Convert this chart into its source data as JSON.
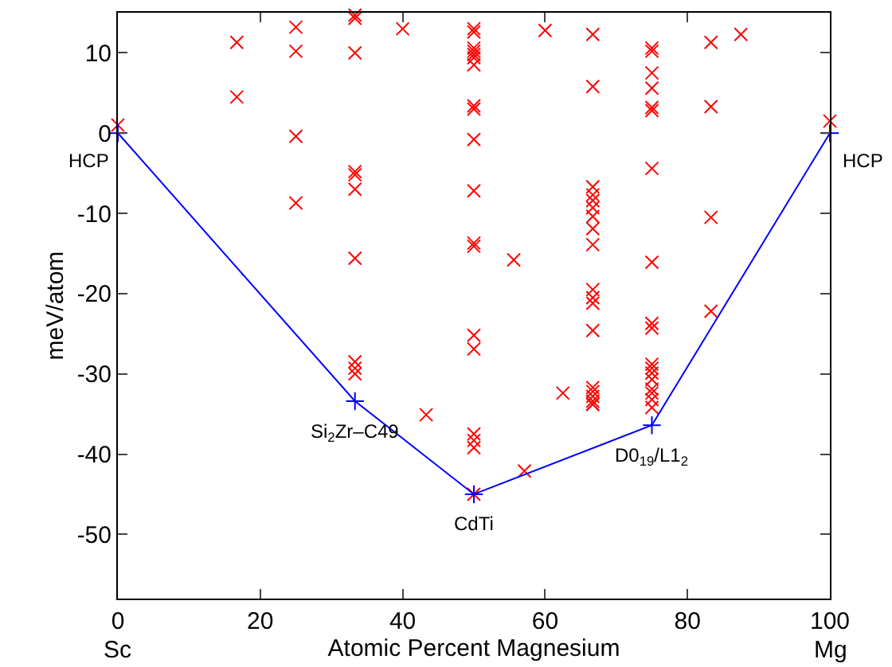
{
  "chart_data": {
    "type": "scatter",
    "xlabel": "Atomic Percent Magnesium",
    "ylabel": "meV/atom",
    "xlim": [
      0,
      100
    ],
    "ylim": [
      -58,
      15
    ],
    "xticks": [
      0,
      20,
      40,
      60,
      80,
      100
    ],
    "yticks": [
      -50,
      -40,
      -30,
      -20,
      -10,
      0,
      10
    ],
    "series": [
      {
        "marker": "cross",
        "color": "#ff0000",
        "x": [
          0,
          16.7,
          16.7,
          25,
          25,
          25,
          25,
          33.3,
          33.3,
          33.3,
          33.3,
          33.3,
          33.3,
          33.3,
          33.3,
          33.3,
          33.3,
          40,
          43.3,
          50,
          50,
          50,
          50,
          50,
          50,
          50,
          50,
          50,
          50,
          50,
          50,
          50,
          50,
          50,
          50,
          50,
          50,
          50,
          55.6,
          57.1,
          60,
          62.5,
          66.7,
          66.7,
          66.7,
          66.7,
          66.7,
          66.7,
          66.7,
          66.7,
          66.7,
          66.7,
          66.7,
          66.7,
          66.7,
          66.7,
          66.7,
          66.7,
          66.7,
          66.7,
          66.7,
          75,
          75,
          75,
          75,
          75,
          75,
          75,
          75,
          75,
          75,
          75,
          75,
          75,
          75,
          75,
          75,
          75,
          75,
          83.3,
          83.3,
          83.3,
          83.3,
          87.5,
          100
        ],
        "values": [
          1,
          11.3,
          4.5,
          13.2,
          10.2,
          -0.4,
          -8.7,
          14.7,
          14.3,
          10,
          -4.8,
          -5.2,
          -7,
          -15.6,
          -28.5,
          -29.3,
          -30,
          13,
          -35.1,
          13,
          12.6,
          10.6,
          10.2,
          9.8,
          9.4,
          8.5,
          3.4,
          3,
          -0.8,
          -7.2,
          -13.7,
          -14.1,
          -25.2,
          -26.9,
          -37.5,
          -38.3,
          -39.2,
          -45,
          -15.8,
          -42.1,
          12.8,
          -32.4,
          12.3,
          5.8,
          -6.7,
          -7.7,
          -8.4,
          -9.3,
          -10.4,
          -11.9,
          -13.9,
          -19.5,
          -20.5,
          -21.2,
          -24.6,
          -31.7,
          -32.2,
          -32.8,
          -33.4,
          -33.8,
          -33.8,
          10.6,
          10.2,
          7.5,
          5.6,
          3.2,
          2.8,
          -4.4,
          -16.1,
          -23.7,
          -24.3,
          -28.8,
          -29.3,
          -29.9,
          -30.7,
          -31.9,
          -32.4,
          -33.2,
          -34.2,
          11.3,
          3.3,
          -10.5,
          -22.2,
          12.3,
          1.5
        ]
      },
      {
        "type": "line",
        "marker": "cross",
        "color": "#0000ff",
        "x": [
          0,
          33.3,
          50,
          75,
          100
        ],
        "values": [
          0,
          -33.4,
          -45,
          -36.4,
          0
        ]
      }
    ],
    "annotations": [
      {
        "text": "HCP",
        "x": 0,
        "y": 0
      },
      {
        "text": "Si$_{2}$Zr–C49",
        "x": 33.3,
        "y": -33.4
      },
      {
        "text": "CdTi",
        "x": 50,
        "y": -45
      },
      {
        "text": "D0$_{19}$/L1$_{2}$",
        "x": 75,
        "y": -36.4
      },
      {
        "text": "HCP",
        "x": 100,
        "y": 0
      },
      "Sc",
      "Mg"
    ]
  }
}
